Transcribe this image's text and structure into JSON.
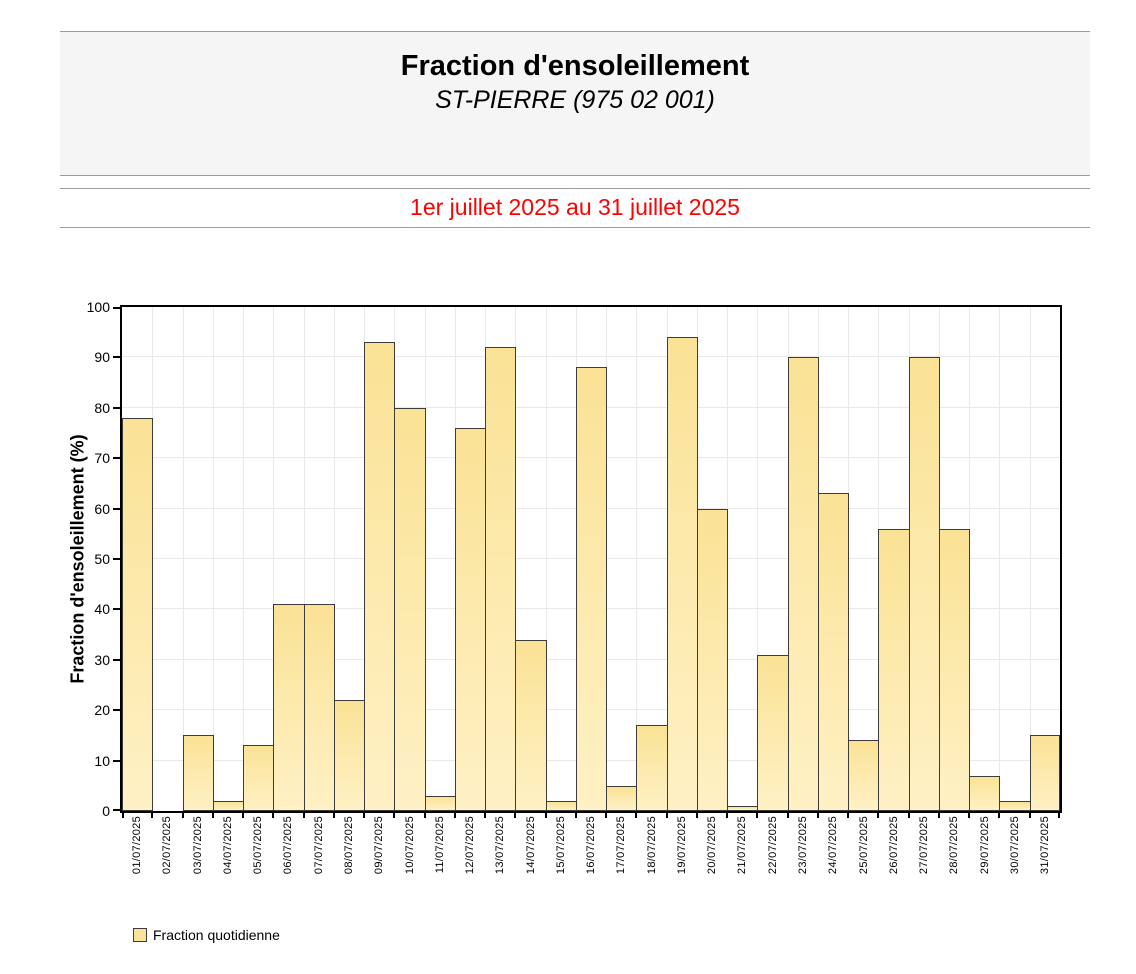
{
  "header": {
    "title": "Fraction d'ensoleillement",
    "subtitle": "ST-PIERRE (975 02 001)",
    "period": "1er juillet 2025 au 31 juillet 2025"
  },
  "legend": {
    "label": "Fraction quotidienne"
  },
  "colors": {
    "bar_fill_top": "#FAE295",
    "bar_fill_bottom": "#FFF1C5",
    "bar_border": "#3C3C3C",
    "grid": "#E9E9E9",
    "frame": "#000000",
    "period_red": "#FF0000",
    "header_bg": "#F5F5F5",
    "rule_gray": "#9B9B9B"
  },
  "chart_data": {
    "type": "bar",
    "title": "Fraction d'ensoleillement",
    "subtitle": "ST-PIERRE (975 02 001)",
    "xlabel": "",
    "ylabel": "Fraction d'ensoleillement (%)",
    "ylim": [
      0,
      100
    ],
    "ytick_step": 10,
    "y_tick_labels": [
      "0",
      "10",
      "20",
      "30",
      "40",
      "50",
      "60",
      "70",
      "80",
      "90",
      "100"
    ],
    "grid": true,
    "legend_position": "bottom-left",
    "series_name": "Fraction quotidienne",
    "categories": [
      "01/07/2025",
      "02/07/2025",
      "03/07/2025",
      "04/07/2025",
      "05/07/2025",
      "06/07/2025",
      "07/07/2025",
      "08/07/2025",
      "09/07/2025",
      "10/07/2025",
      "11/07/2025",
      "12/07/2025",
      "13/07/2025",
      "14/07/2025",
      "15/07/2025",
      "16/07/2025",
      "17/07/2025",
      "18/07/2025",
      "19/07/2025",
      "20/07/2025",
      "21/07/2025",
      "22/07/2025",
      "23/07/2025",
      "24/07/2025",
      "25/07/2025",
      "26/07/2025",
      "27/07/2025",
      "28/07/2025",
      "29/07/2025",
      "30/07/2025",
      "31/07/2025"
    ],
    "values": [
      78,
      0,
      15,
      2,
      13,
      41,
      41,
      22,
      93,
      80,
      3,
      76,
      92,
      34,
      2,
      88,
      5,
      17,
      94,
      60,
      1,
      31,
      90,
      63,
      14,
      56,
      90,
      56,
      7,
      2,
      15
    ]
  }
}
